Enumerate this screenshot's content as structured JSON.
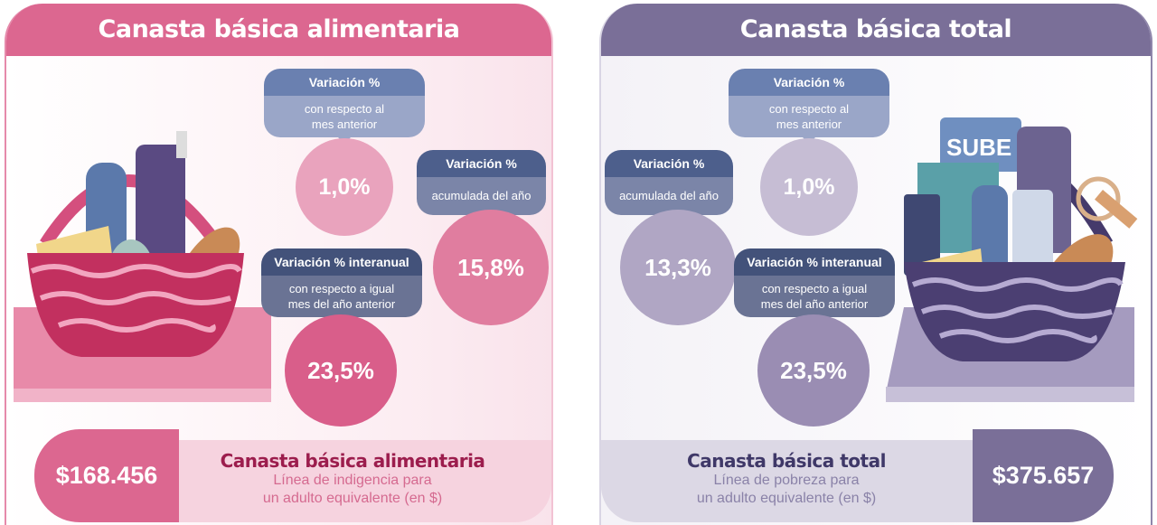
{
  "left": {
    "title": "Canasta básica alimentaria",
    "monthly": {
      "title": "Variación %",
      "subtitle": "con respecto al mes anterior",
      "value": "1,0%"
    },
    "ytd": {
      "title": "Variación %",
      "subtitle": "acumulada del año",
      "value": "15,8%"
    },
    "yoy": {
      "title": "Variación % interanual",
      "subtitle": "con respecto a igual mes del año anterior",
      "value": "23,5%"
    },
    "price": "$168.456",
    "footer_title": "Canasta básica alimentaria",
    "footer_line1": "Línea de indigencia para",
    "footer_line2": "un adulto equivalente (en $)",
    "colors": {
      "header": "#dc6790",
      "dark": "#d95e8a"
    }
  },
  "right": {
    "title": "Canasta básica total",
    "monthly": {
      "title": "Variación %",
      "subtitle": "con respecto al mes anterior",
      "value": "1,0%"
    },
    "ytd": {
      "title": "Variación %",
      "subtitle": "acumulada del año",
      "value": "13,3%"
    },
    "yoy": {
      "title": "Variación % interanual",
      "subtitle": "con respecto a igual mes del año anterior",
      "value": "23,5%"
    },
    "price": "$375.657",
    "footer_title": "Canasta básica total",
    "footer_line1": "Línea de pobreza para",
    "footer_line2": "un adulto equivalente (en $)",
    "card_label": "SUBE",
    "colors": {
      "header": "#7a6f98",
      "dark": "#9a8db3"
    }
  }
}
